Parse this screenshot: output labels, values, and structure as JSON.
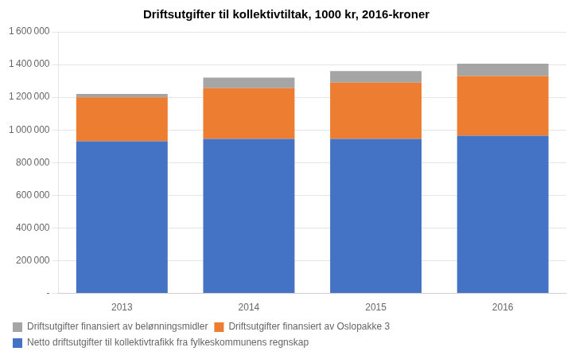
{
  "chart_data": {
    "type": "bar",
    "title": "Driftsutgifter til kollektivtiltak, 1000 kr, 2016-kroner",
    "categories": [
      "2013",
      "2014",
      "2015",
      "2016"
    ],
    "series": [
      {
        "name": "Netto driftsutgifter til kollektivtrafikk fra fylkeskommunens regnskap",
        "color": "#4472C4",
        "values": [
          930000,
          945000,
          945000,
          965000
        ]
      },
      {
        "name": "Driftsutgifter finansiert av Oslopakke 3",
        "color": "#ED7D31",
        "values": [
          270000,
          310000,
          345000,
          365000
        ]
      },
      {
        "name": "Driftsutgifter finansiert av belønningsmidler",
        "color": "#A5A5A5",
        "values": [
          20000,
          65000,
          70000,
          75000
        ]
      }
    ],
    "stacked": true,
    "ylim": [
      0,
      1600000
    ],
    "yticks": [
      {
        "value": 0,
        "label": "-"
      },
      {
        "value": 200000,
        "label": "200 000"
      },
      {
        "value": 400000,
        "label": "400 000"
      },
      {
        "value": 600000,
        "label": "600 000"
      },
      {
        "value": 800000,
        "label": "800 000"
      },
      {
        "value": 1000000,
        "label": "1 000 000"
      },
      {
        "value": 1200000,
        "label": "1 200 000"
      },
      {
        "value": 1400000,
        "label": "1 400 000"
      },
      {
        "value": 1600000,
        "label": "1 600 000"
      }
    ],
    "grid": true,
    "legend": "bottom"
  }
}
